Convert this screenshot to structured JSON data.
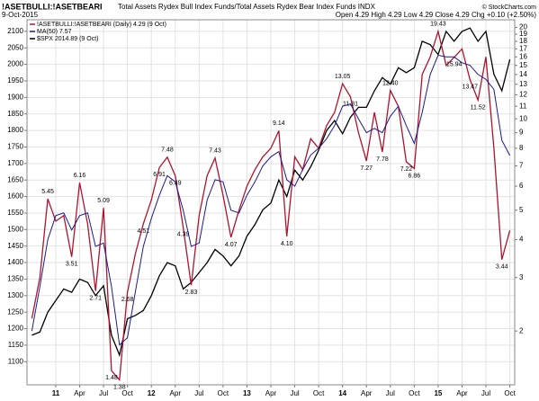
{
  "chart_data": {
    "type": "line",
    "title": "!ASETBULLI:!ASETBEARI",
    "subtitle": "Total Assets Rydex Bull Index Funds/Total Assets Rydex Bear Index Funds  INDX",
    "date": "9-Oct-2015",
    "quote": "Open 4.29  High 4.29  Low 4.29  Close 4.29  Chg +0.10 (+2.50%)",
    "copyright": "© StockCharts.com",
    "categories": [
      null,
      null,
      null,
      "11",
      null,
      null,
      "Apr",
      null,
      null,
      "Jul",
      null,
      null,
      "Oct",
      null,
      null,
      "12",
      null,
      null,
      "Apr",
      null,
      null,
      "Jul",
      null,
      null,
      "Oct",
      null,
      null,
      "13",
      null,
      null,
      "Apr",
      null,
      null,
      "Jul",
      null,
      null,
      "Oct",
      null,
      null,
      "14",
      null,
      null,
      "Apr",
      null,
      null,
      "Jul",
      null,
      null,
      "Oct",
      null,
      null,
      "15",
      null,
      null,
      "Apr",
      null,
      null,
      "Jul",
      null,
      null,
      "Oct"
    ],
    "series": [
      {
        "name": "!ASETBULLI:!ASETBEARI (Daily) 4.29 (9 Oct)",
        "color": "#b0132e",
        "axis": "y2",
        "values": [
          2.2,
          3.0,
          5.45,
          4.6,
          4.8,
          3.51,
          6.16,
          4.5,
          2.71,
          5.09,
          1.48,
          1.38,
          2.68,
          3.6,
          4.51,
          5.4,
          6.91,
          7.48,
          6.49,
          4.39,
          2.83,
          4.8,
          6.5,
          7.43,
          5.6,
          4.07,
          5.0,
          6.0,
          6.8,
          7.5,
          8.0,
          9.14,
          4.1,
          7.5,
          6.8,
          8.6,
          8.0,
          9.5,
          10.5,
          13.05,
          11.81,
          9.0,
          7.27,
          10.5,
          7.78,
          12.4,
          11.0,
          7.22,
          6.86,
          14.0,
          16.0,
          19.43,
          15.0,
          15.94,
          17.0,
          13.47,
          11.52,
          16.0,
          8.0,
          3.44,
          4.29
        ],
        "value_labels": [
          null,
          null,
          "5.45",
          null,
          null,
          "3.51",
          "6.16",
          null,
          "2.71",
          "5.09",
          "1.48",
          "1.38",
          "2.68",
          null,
          "4.51",
          null,
          "6.91",
          "7.48",
          "6.49",
          "4.39",
          "2.83",
          null,
          null,
          "7.43",
          null,
          "4.07",
          null,
          null,
          null,
          null,
          null,
          "9.14",
          "4.10",
          null,
          null,
          null,
          null,
          null,
          null,
          "13.05",
          "11.81",
          null,
          "7.27",
          null,
          "7.78",
          "12.40",
          null,
          "7.22",
          "6.86",
          null,
          null,
          "19.43",
          null,
          "15.94",
          null,
          "13.47",
          "11.52",
          null,
          null,
          "3.44",
          null
        ]
      },
      {
        "name": "MA(50) 7.57",
        "color": "#1a1a8e",
        "axis": "y2",
        "values": [
          2.0,
          2.8,
          4.0,
          4.8,
          4.9,
          4.3,
          4.8,
          4.9,
          3.8,
          3.9,
          2.8,
          1.8,
          1.9,
          2.7,
          3.8,
          4.7,
          5.6,
          6.5,
          6.2,
          5.0,
          3.8,
          3.9,
          5.4,
          6.3,
          6.2,
          5.0,
          4.9,
          5.6,
          6.2,
          7.0,
          7.5,
          7.8,
          6.3,
          6.0,
          6.8,
          7.6,
          8.0,
          8.6,
          9.5,
          11.0,
          11.2,
          10.0,
          9.0,
          9.3,
          9.0,
          10.2,
          11.0,
          9.5,
          8.3,
          10.5,
          14.0,
          16.2,
          16.0,
          16.0,
          15.3,
          15.0,
          14.0,
          13.5,
          12.5,
          8.5,
          7.57
        ]
      },
      {
        "name": "$SPX 2014.89 (9 Oct)",
        "color": "#000000",
        "values": [
          1180,
          1190,
          1250,
          1285,
          1320,
          1310,
          1350,
          1340,
          1300,
          1330,
          1180,
          1120,
          1230,
          1240,
          1255,
          1300,
          1360,
          1400,
          1390,
          1320,
          1340,
          1370,
          1400,
          1440,
          1420,
          1390,
          1420,
          1480,
          1515,
          1560,
          1580,
          1650,
          1600,
          1680,
          1650,
          1690,
          1740,
          1800,
          1830,
          1790,
          1840,
          1870,
          1870,
          1920,
          1960,
          1940,
          1990,
          1975,
          1990,
          2070,
          2060,
          2030,
          2100,
          2070,
          2100,
          2110,
          2070,
          2100,
          1970,
          1920,
          2014.89
        ]
      }
    ],
    "ylim": [
      1030,
      2135
    ],
    "yticks": [
      1100,
      1150,
      1200,
      1250,
      1300,
      1350,
      1400,
      1450,
      1500,
      1550,
      1600,
      1650,
      1700,
      1750,
      1800,
      1850,
      1900,
      1950,
      2000,
      2050,
      2100
    ],
    "y2lim": [
      1.33,
      21.2
    ],
    "y2ticks": [
      2,
      3,
      4,
      5,
      6,
      7,
      8,
      9,
      10,
      11,
      12,
      13,
      14,
      15,
      16,
      17,
      18,
      19,
      20
    ],
    "y2log": true,
    "grid": true,
    "legend": "top-left"
  }
}
